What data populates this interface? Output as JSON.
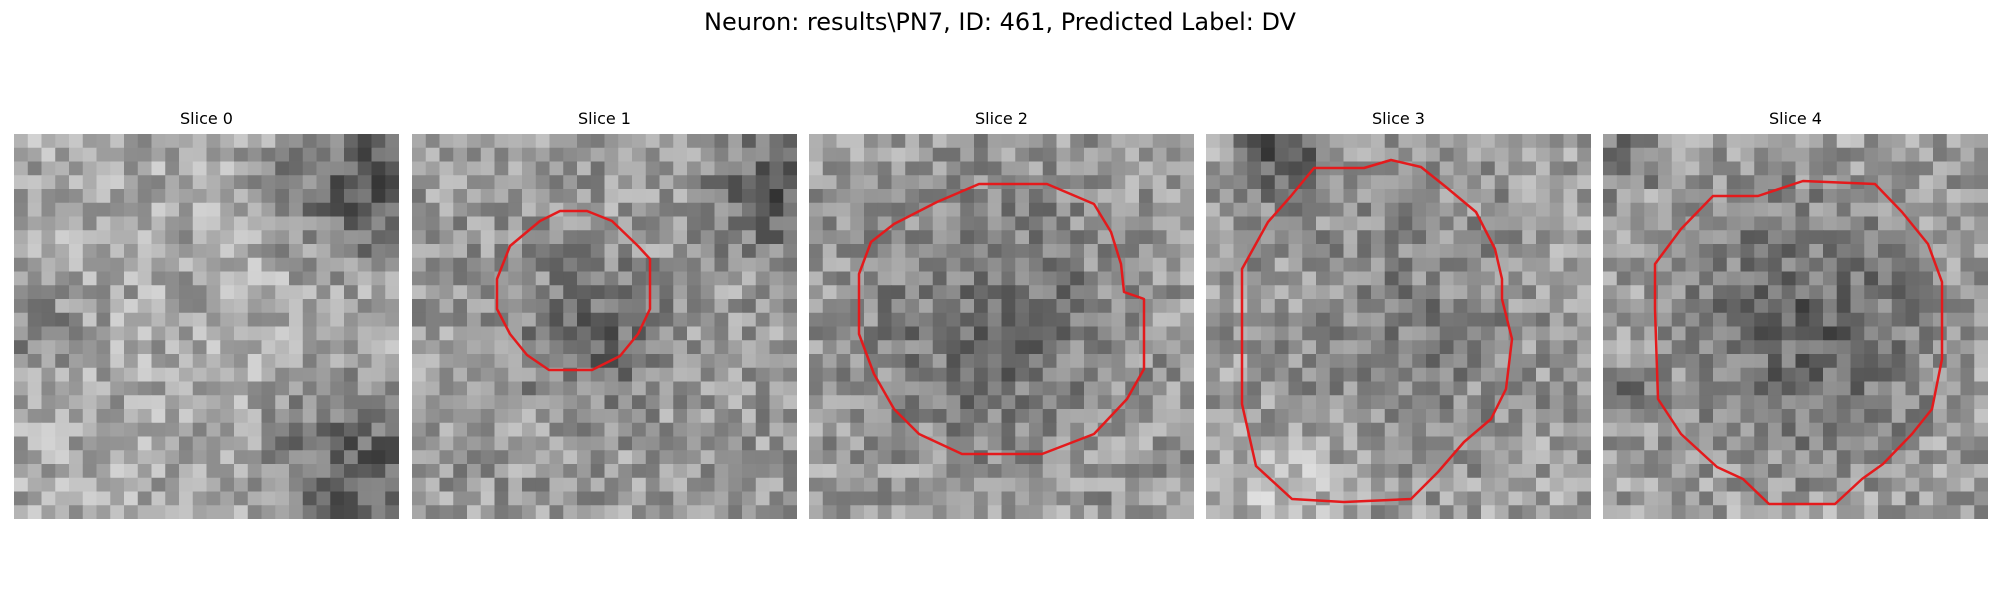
{
  "figure": {
    "title": "Neuron: results\\PN7, ID: 461, Predicted Label: DV"
  },
  "style": {
    "contour_color": "#e41a1c"
  },
  "panels": [
    {
      "title": "Slice 0",
      "contour": false,
      "gradient": "background-bright-dark-corners"
    },
    {
      "title": "Slice 1",
      "contour": true,
      "contour_shape": "small-octagon",
      "gradient": "mottled"
    },
    {
      "title": "Slice 2",
      "contour": true,
      "contour_shape": "medium-octagon",
      "gradient": "mottled"
    },
    {
      "title": "Slice 3",
      "contour": true,
      "contour_shape": "large-octagon",
      "gradient": "mottled"
    },
    {
      "title": "Slice 4",
      "contour": true,
      "contour_shape": "large-octagon",
      "gradient": "mottled-dark"
    }
  ]
}
